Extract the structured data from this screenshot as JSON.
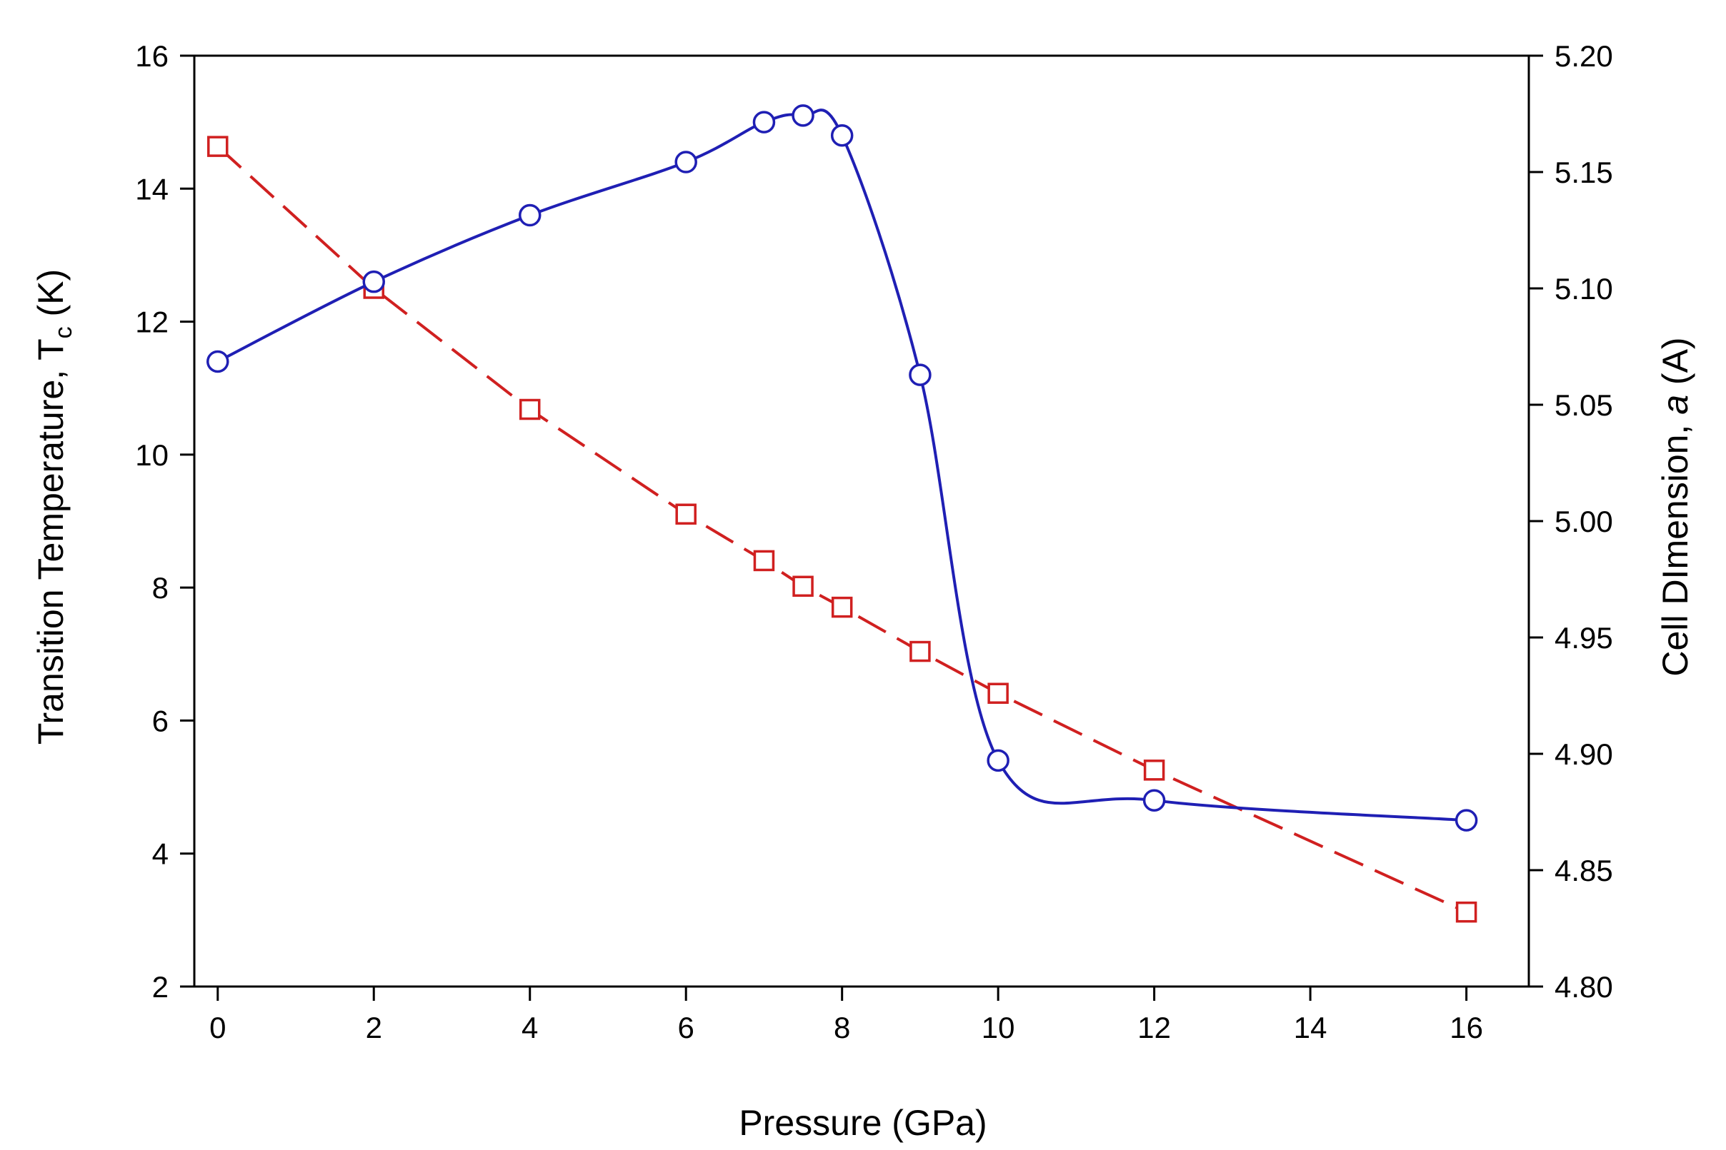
{
  "chart_data": {
    "type": "line",
    "title": "",
    "xlabel": "Pressure (GPa)",
    "ylabel_left": {
      "main": "Transition Temperature, T",
      "sub": "c",
      "suffix": " (K)"
    },
    "ylabel_right": {
      "prefix": "Cell DImension, ",
      "italic": "a",
      "suffix": " (A)"
    },
    "xlim": [
      -0.3,
      16.8
    ],
    "ylim_left": [
      2,
      16
    ],
    "ylim_right": [
      4.8,
      5.2
    ],
    "x_ticks": [
      "0",
      "2",
      "4",
      "6",
      "8",
      "10",
      "12",
      "14",
      "16"
    ],
    "y_left_ticks": [
      "2",
      "4",
      "6",
      "8",
      "10",
      "12",
      "14",
      "16"
    ],
    "y_right_ticks": [
      "4.80",
      "4.85",
      "4.90",
      "4.95",
      "5.00",
      "5.05",
      "5.10",
      "5.15",
      "5.20"
    ],
    "grid": false,
    "series": [
      {
        "name": "Transition Temperature Tc",
        "axis": "left",
        "color": "#1f1fb4",
        "marker": "circle",
        "line_style": "solid",
        "x": [
          0,
          2,
          4,
          6,
          7,
          7.5,
          8,
          9,
          10,
          12,
          16
        ],
        "values": [
          11.4,
          12.6,
          13.6,
          14.4,
          15.0,
          15.1,
          14.8,
          11.2,
          5.4,
          4.8,
          4.5
        ]
      },
      {
        "name": "Cell Dimension a",
        "axis": "right",
        "color": "#d02020",
        "marker": "square",
        "line_style": "dashed",
        "x": [
          0,
          2,
          4,
          6,
          7,
          7.5,
          8,
          9,
          10,
          12,
          16
        ],
        "values": [
          5.161,
          5.1,
          5.048,
          5.003,
          4.983,
          4.972,
          4.963,
          4.944,
          4.926,
          4.893,
          4.832
        ]
      }
    ]
  }
}
